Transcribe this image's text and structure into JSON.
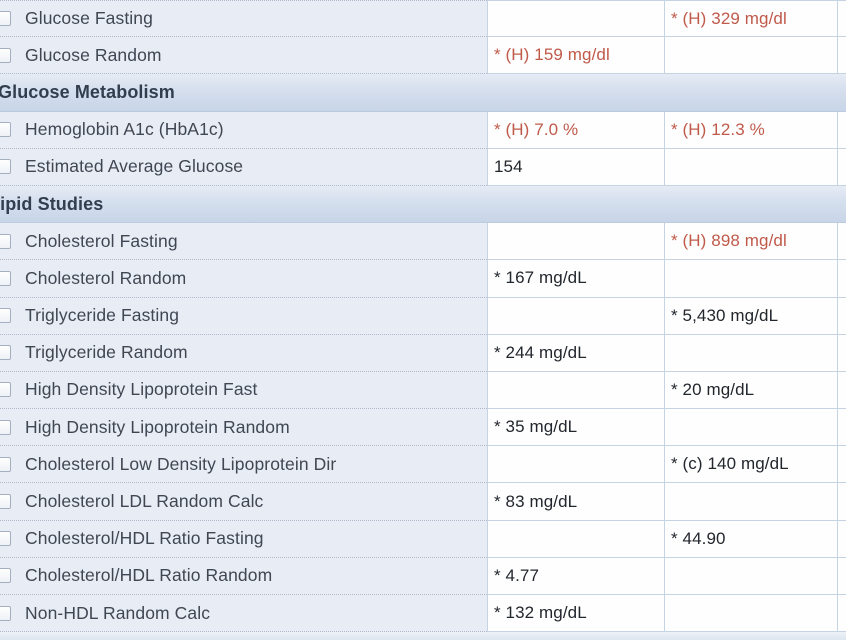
{
  "app": {
    "view": "lab-results-flowsheet",
    "colors": {
      "abnormal_high_text": "#c05a4a",
      "normal_value_text": "#22262d",
      "label_text": "#404753",
      "section_band": "#c8d5e8",
      "row_background": "#e8edf5",
      "cell_background": "#fefefe",
      "cell_border": "#c6d3e2"
    }
  },
  "table": {
    "rows": [
      {
        "label": "Glucose Fasting",
        "col1": "",
        "col2": "* (H) 329 mg/dl"
      },
      {
        "label": "Glucose Random",
        "col1": "* (H) 159 mg/dl",
        "col2": ""
      },
      {
        "section": "Glucose Metabolism"
      },
      {
        "label": "Hemoglobin A1c (HbA1c)",
        "col1": "* (H) 7.0 %",
        "col2": "* (H) 12.3 %"
      },
      {
        "label": "Estimated Average Glucose",
        "col1": "154",
        "col2": ""
      },
      {
        "section": "Lipid Studies"
      },
      {
        "label": "Cholesterol Fasting",
        "col1": "",
        "col2": "* (H) 898 mg/dl"
      },
      {
        "label": "Cholesterol Random",
        "col1": "* 167 mg/dL",
        "col2": ""
      },
      {
        "label": "Triglyceride Fasting",
        "col1": "",
        "col2": "* 5,430 mg/dL"
      },
      {
        "label": "Triglyceride Random",
        "col1": "* 244 mg/dL",
        "col2": ""
      },
      {
        "label": "High Density Lipoprotein Fast",
        "col1": "",
        "col2": "* 20 mg/dL"
      },
      {
        "label": "High Density Lipoprotein Random",
        "col1": "* 35 mg/dL",
        "col2": ""
      },
      {
        "label": "Cholesterol Low Density Lipoprotein Dir",
        "col1": "",
        "col2": "* (c) 140 mg/dL"
      },
      {
        "label": "Cholesterol LDL Random Calc",
        "col1": "* 83 mg/dL",
        "col2": ""
      },
      {
        "label": "Cholesterol/HDL Ratio Fasting",
        "col1": "",
        "col2": "* 44.90"
      },
      {
        "label": "Cholesterol/HDL Ratio Random",
        "col1": "* 4.77",
        "col2": ""
      },
      {
        "label": "Non-HDL Random Calc",
        "col1": "* 132 mg/dL",
        "col2": ""
      }
    ]
  }
}
